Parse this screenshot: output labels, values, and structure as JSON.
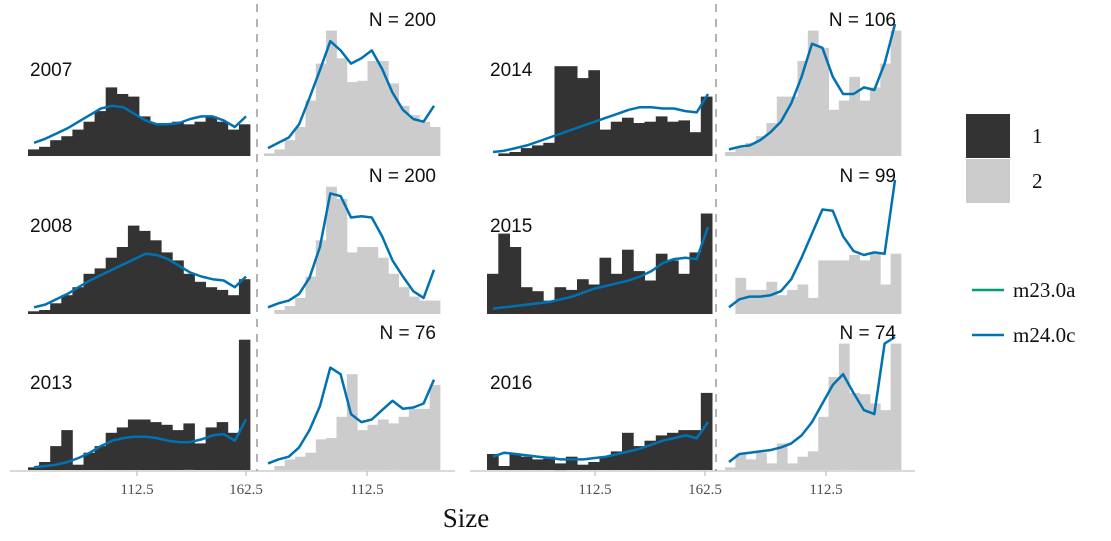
{
  "chart_data": {
    "type": "bar",
    "xlabel": "Size",
    "tick_labels": [
      "112.5",
      "162.5"
    ],
    "x_ticks": [
      112.5,
      162.5
    ],
    "x_range": [
      62.5,
      162.5
    ],
    "grid": false,
    "legend_position": "right",
    "legend": {
      "fill": [
        {
          "label": "1",
          "color": "#333333"
        },
        {
          "label": "2",
          "color": "#cccccc"
        }
      ],
      "lines": [
        {
          "label": "m23.0a",
          "color": "#009e73"
        },
        {
          "label": "m24.0c",
          "color": "#0072b2"
        }
      ]
    },
    "colors": {
      "sex1": "#333333",
      "sex2": "#cccccc",
      "m23.0a": "#009e73",
      "m24.0c": "#0072b2"
    },
    "panels": [
      {
        "year": "2007",
        "n_label": "N = 200",
        "sex1": [
          0.05,
          0.07,
          0.12,
          0.15,
          0.2,
          0.26,
          0.34,
          0.52,
          0.47,
          0.45,
          0.3,
          0.25,
          0.24,
          0.26,
          0.24,
          0.26,
          0.3,
          0.26,
          0.2,
          0.24
        ],
        "m24_sex1": [
          0.1,
          0.13,
          0.17,
          0.21,
          0.26,
          0.31,
          0.36,
          0.38,
          0.37,
          0.32,
          0.27,
          0.24,
          0.24,
          0.25,
          0.28,
          0.3,
          0.3,
          0.27,
          0.22,
          0.3
        ],
        "sex2": [
          0.02,
          0.05,
          0.12,
          0.22,
          0.42,
          0.7,
          0.95,
          0.74,
          0.56,
          0.57,
          0.72,
          0.72,
          0.55,
          0.38,
          0.31,
          0.26,
          0.22
        ],
        "m24_sex2": [
          0.06,
          0.1,
          0.14,
          0.24,
          0.44,
          0.65,
          0.87,
          0.8,
          0.7,
          0.74,
          0.8,
          0.66,
          0.48,
          0.35,
          0.28,
          0.26,
          0.38
        ]
      },
      {
        "year": "2014",
        "n_label": "N = 106",
        "sex1": [
          0.0,
          0.02,
          0.03,
          0.06,
          0.08,
          0.1,
          0.68,
          0.68,
          0.59,
          0.65,
          0.2,
          0.26,
          0.29,
          0.25,
          0.26,
          0.3,
          0.26,
          0.27,
          0.18,
          0.45
        ],
        "m24_sex1": [
          0.03,
          0.04,
          0.06,
          0.08,
          0.11,
          0.14,
          0.17,
          0.2,
          0.23,
          0.26,
          0.29,
          0.32,
          0.35,
          0.37,
          0.37,
          0.36,
          0.36,
          0.34,
          0.33,
          0.47
        ],
        "sex2": [
          0.03,
          0.06,
          0.1,
          0.15,
          0.25,
          0.45,
          0.45,
          0.72,
          0.95,
          0.82,
          0.35,
          0.42,
          0.6,
          0.42,
          0.52,
          0.7,
          0.95
        ],
        "m24_sex2": [
          0.05,
          0.07,
          0.08,
          0.12,
          0.18,
          0.26,
          0.4,
          0.6,
          0.85,
          0.82,
          0.6,
          0.47,
          0.47,
          0.52,
          0.5,
          0.7,
          1.0
        ]
      },
      {
        "year": "2008",
        "n_label": "N = 200",
        "sex1": [
          0.02,
          0.03,
          0.08,
          0.14,
          0.2,
          0.3,
          0.34,
          0.42,
          0.5,
          0.66,
          0.62,
          0.55,
          0.46,
          0.4,
          0.3,
          0.24,
          0.2,
          0.18,
          0.14,
          0.26
        ],
        "m24_sex1": [
          0.05,
          0.07,
          0.11,
          0.15,
          0.2,
          0.25,
          0.29,
          0.33,
          0.37,
          0.41,
          0.45,
          0.44,
          0.41,
          0.36,
          0.31,
          0.28,
          0.26,
          0.25,
          0.2,
          0.28
        ],
        "sex2": [
          0.0,
          0.03,
          0.06,
          0.12,
          0.28,
          0.55,
          0.95,
          0.86,
          0.46,
          0.5,
          0.5,
          0.42,
          0.3,
          0.2,
          0.13,
          0.1,
          0.1
        ],
        "m24_sex2": [
          0.05,
          0.08,
          0.1,
          0.15,
          0.27,
          0.5,
          0.9,
          0.88,
          0.72,
          0.73,
          0.72,
          0.58,
          0.4,
          0.28,
          0.17,
          0.12,
          0.33
        ]
      },
      {
        "year": "2015",
        "n_label": "N = 99",
        "sex1": [
          0.3,
          0.6,
          0.5,
          0.2,
          0.17,
          0.1,
          0.2,
          0.18,
          0.26,
          0.22,
          0.42,
          0.3,
          0.48,
          0.32,
          0.25,
          0.45,
          0.4,
          0.3,
          0.46,
          0.75
        ],
        "m24_sex1": [
          0.04,
          0.05,
          0.06,
          0.07,
          0.08,
          0.09,
          0.11,
          0.13,
          0.16,
          0.19,
          0.21,
          0.23,
          0.25,
          0.28,
          0.32,
          0.38,
          0.41,
          0.42,
          0.41,
          0.65
        ],
        "sex2": [
          0.0,
          0.27,
          0.18,
          0.18,
          0.24,
          0.14,
          0.18,
          0.22,
          0.12,
          0.4,
          0.4,
          0.4,
          0.44,
          0.4,
          0.45,
          0.22,
          0.45
        ],
        "m24_sex2": [
          0.05,
          0.11,
          0.13,
          0.13,
          0.14,
          0.17,
          0.26,
          0.42,
          0.6,
          0.78,
          0.77,
          0.58,
          0.47,
          0.44,
          0.46,
          0.45,
          1.0
        ]
      },
      {
        "year": "2013",
        "n_label": "N = 76",
        "sex1": [
          0.02,
          0.06,
          0.18,
          0.3,
          0.04,
          0.13,
          0.18,
          0.28,
          0.32,
          0.38,
          0.38,
          0.36,
          0.34,
          0.3,
          0.35,
          0.2,
          0.32,
          0.36,
          0.28,
          0.98
        ],
        "m24_sex1": [
          0.02,
          0.03,
          0.04,
          0.06,
          0.09,
          0.13,
          0.18,
          0.22,
          0.24,
          0.25,
          0.25,
          0.24,
          0.22,
          0.21,
          0.21,
          0.23,
          0.26,
          0.27,
          0.22,
          0.38
        ],
        "sex2": [
          0.0,
          0.03,
          0.08,
          0.1,
          0.13,
          0.23,
          0.24,
          0.4,
          0.72,
          0.3,
          0.34,
          0.38,
          0.35,
          0.4,
          0.46,
          0.46,
          0.64
        ],
        "m24_sex2": [
          0.05,
          0.08,
          0.1,
          0.17,
          0.3,
          0.48,
          0.77,
          0.72,
          0.42,
          0.36,
          0.38,
          0.45,
          0.52,
          0.46,
          0.47,
          0.5,
          0.68
        ]
      },
      {
        "year": "2016",
        "n_label": "N = 74",
        "sex1": [
          0.12,
          0.03,
          0.12,
          0.1,
          0.08,
          0.1,
          0.05,
          0.1,
          0.04,
          0.06,
          0.1,
          0.14,
          0.28,
          0.18,
          0.22,
          0.26,
          0.28,
          0.3,
          0.3,
          0.58
        ],
        "m24_sex1": [
          0.1,
          0.13,
          0.12,
          0.11,
          0.1,
          0.09,
          0.08,
          0.08,
          0.08,
          0.09,
          0.1,
          0.12,
          0.14,
          0.16,
          0.19,
          0.22,
          0.24,
          0.26,
          0.24,
          0.36
        ],
        "sex2": [
          0.02,
          0.12,
          0.08,
          0.13,
          0.05,
          0.2,
          0.05,
          0.1,
          0.14,
          0.4,
          0.7,
          0.95,
          0.58,
          0.57,
          0.5,
          0.45,
          0.95
        ],
        "m24_sex2": [
          0.06,
          0.12,
          0.13,
          0.14,
          0.15,
          0.17,
          0.2,
          0.26,
          0.36,
          0.5,
          0.64,
          0.72,
          0.58,
          0.45,
          0.42,
          0.95,
          1.0
        ]
      }
    ]
  }
}
